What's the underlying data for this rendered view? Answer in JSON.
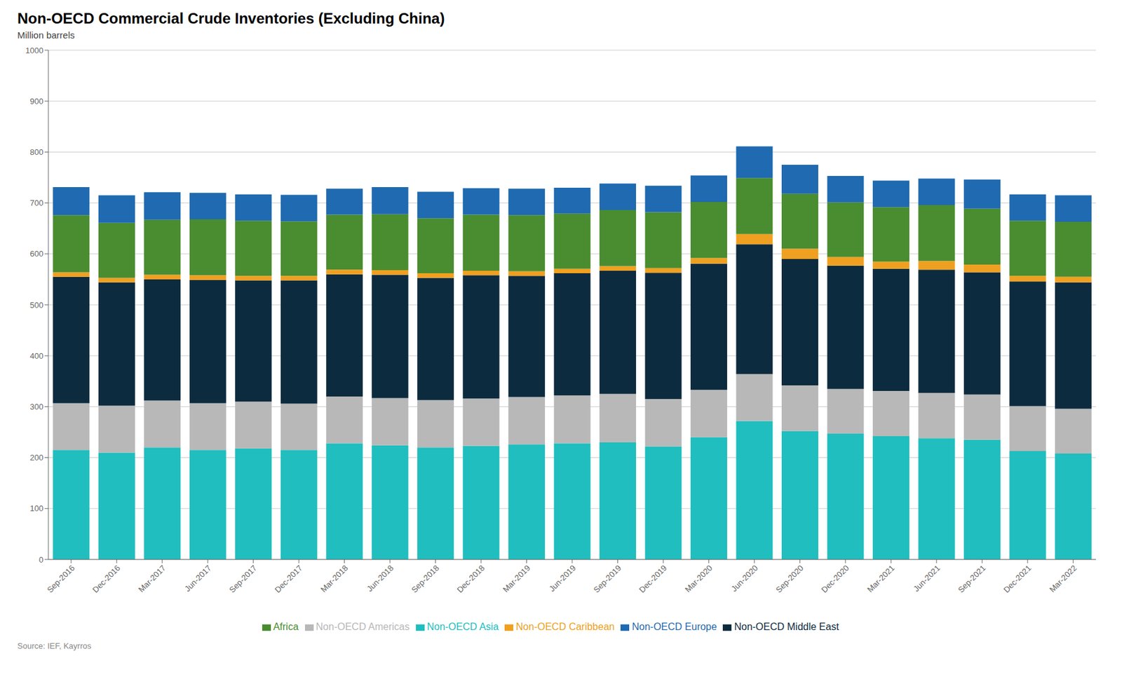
{
  "chart_data": {
    "type": "bar",
    "title": "Non-OECD Commercial Crude Inventories (Excluding China)",
    "ylabel": "Million barrels",
    "annotations": [
      "Source: IEF, Kayrros"
    ],
    "stacked": true,
    "grid": true,
    "legend": "bottom",
    "ylim": [
      0,
      1000
    ],
    "yticks": [
      0,
      100,
      200,
      300,
      400,
      500,
      600,
      700,
      800,
      900,
      1000
    ],
    "categories": [
      "Sep-2016",
      "Dec-2016",
      "Mar-2017",
      "Jun-2017",
      "Sep-2017",
      "Dec-2017",
      "Mar-2018",
      "Jun-2018",
      "Sep-2018",
      "Dec-2018",
      "Mar-2019",
      "Jun-2019",
      "Sep-2019",
      "Dec-2019",
      "Mar-2020",
      "Jun-2020",
      "Sep-2020",
      "Dec-2020",
      "Mar-2021",
      "Jun-2021",
      "Sep-2021",
      "Dec-2021",
      "Mar-2022"
    ],
    "series": [
      {
        "name": "Non-OECD Asia",
        "color": "#20bebe",
        "values": [
          215,
          210,
          220,
          215,
          218,
          215,
          228,
          224,
          220,
          223,
          226,
          228,
          230,
          222,
          240,
          272,
          252,
          247,
          242,
          238,
          235,
          213,
          208
        ]
      },
      {
        "name": "Non-OECD Americas",
        "color": "#b8b8b8",
        "values": [
          92,
          92,
          92,
          92,
          92,
          91,
          92,
          93,
          93,
          93,
          93,
          94,
          95,
          93,
          93,
          92,
          90,
          88,
          89,
          89,
          89,
          88,
          88
        ]
      },
      {
        "name": "Non-OECD Middle East",
        "color": "#0d2b3e",
        "values": [
          248,
          242,
          238,
          242,
          238,
          242,
          240,
          242,
          240,
          242,
          238,
          240,
          242,
          248,
          248,
          255,
          248,
          242,
          240,
          242,
          240,
          245,
          248
        ]
      },
      {
        "name": "Non-OECD Caribbean",
        "color": "#f0a020",
        "values": [
          9,
          9,
          9,
          9,
          9,
          9,
          9,
          9,
          9,
          9,
          9,
          9,
          9,
          9,
          11,
          20,
          20,
          17,
          14,
          17,
          15,
          11,
          11
        ]
      },
      {
        "name": "Africa",
        "color": "#4a8c30",
        "values": [
          112,
          108,
          108,
          110,
          108,
          107,
          108,
          110,
          108,
          110,
          110,
          108,
          110,
          110,
          110,
          110,
          108,
          107,
          107,
          110,
          110,
          108,
          108
        ]
      },
      {
        "name": "Non-OECD Europe",
        "color": "#1f6ab0",
        "values": [
          55,
          54,
          54,
          52,
          52,
          52,
          51,
          53,
          52,
          52,
          52,
          51,
          52,
          52,
          52,
          62,
          57,
          52,
          52,
          52,
          57,
          52,
          52
        ]
      }
    ]
  }
}
